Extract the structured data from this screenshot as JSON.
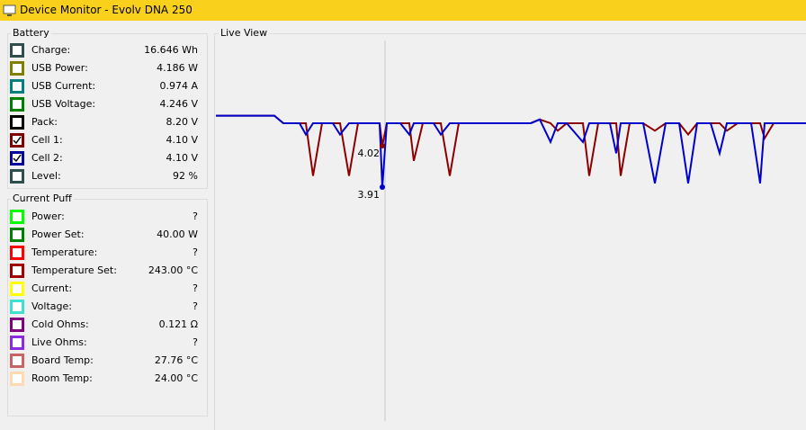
{
  "window": {
    "title": "Device Monitor - Evolv DNA 250"
  },
  "battery": {
    "title": "Battery",
    "rows": [
      {
        "label": "Charge:",
        "value": "16.646 Wh",
        "color": "#2f4f4f",
        "checked": false
      },
      {
        "label": "USB Power:",
        "value": "4.186 W",
        "color": "#808000",
        "checked": false
      },
      {
        "label": "USB Current:",
        "value": "0.974 A",
        "color": "#008080",
        "checked": false
      },
      {
        "label": "USB Voltage:",
        "value": "4.246 V",
        "color": "#008000",
        "checked": false
      },
      {
        "label": "Pack:",
        "value": "8.20 V",
        "color": "#000000",
        "checked": false
      },
      {
        "label": "Cell 1:",
        "value": "4.10 V",
        "color": "#800000",
        "checked": true
      },
      {
        "label": "Cell 2:",
        "value": "4.10 V",
        "color": "#0000a0",
        "checked": true
      },
      {
        "label": "Level:",
        "value": "92 %",
        "color": "#2f4f4f",
        "checked": false
      }
    ]
  },
  "current_puff": {
    "title": "Current Puff",
    "rows": [
      {
        "label": "Power:",
        "value": "?",
        "color": "#00ff00",
        "checked": false
      },
      {
        "label": "Power Set:",
        "value": "40.00 W",
        "color": "#008000",
        "checked": false
      },
      {
        "label": "Temperature:",
        "value": "?",
        "color": "#ff0000",
        "checked": false
      },
      {
        "label": "Temperature Set:",
        "value": "243.00 °C",
        "color": "#a00000",
        "checked": false
      },
      {
        "label": "Current:",
        "value": "?",
        "color": "#ffff00",
        "checked": false
      },
      {
        "label": "Voltage:",
        "value": "?",
        "color": "#40e0d0",
        "checked": false
      },
      {
        "label": "Cold Ohms:",
        "value": "0.121 Ω",
        "color": "#800080",
        "checked": false
      },
      {
        "label": "Live Ohms:",
        "value": "?",
        "color": "#8a2be2",
        "checked": false
      },
      {
        "label": "Board Temp:",
        "value": "27.76 °C",
        "color": "#c86464",
        "checked": false
      },
      {
        "label": "Room Temp:",
        "value": "24.00 °C",
        "color": "#ffdab0",
        "checked": false
      }
    ]
  },
  "chart_data": {
    "type": "line",
    "title": "Live View",
    "x": [
      0,
      65,
      75,
      93,
      100,
      108,
      118,
      130,
      138,
      148,
      158,
      172,
      178,
      182,
      185,
      190,
      205,
      215,
      220,
      230,
      242,
      250,
      260,
      270,
      350,
      360,
      372,
      380,
      390,
      408,
      415,
      425,
      438,
      445,
      450,
      460,
      475,
      488,
      500,
      515,
      525,
      535,
      550,
      560,
      568,
      580,
      595,
      605,
      610,
      620,
      656
    ],
    "xlim": [
      0,
      656
    ],
    "ylim": [
      3.3,
      4.3
    ],
    "series": [
      {
        "color": "#8b0000",
        "values": [
          4.1,
          4.1,
          4.08,
          4.08,
          4.08,
          3.94,
          4.08,
          4.08,
          4.08,
          3.94,
          4.08,
          4.08,
          4.08,
          4.08,
          4.02,
          4.08,
          4.08,
          4.08,
          3.98,
          4.08,
          4.08,
          4.08,
          3.94,
          4.08,
          4.08,
          4.09,
          4.08,
          4.06,
          4.08,
          4.08,
          3.94,
          4.08,
          4.08,
          4.08,
          3.94,
          4.08,
          4.08,
          4.06,
          4.08,
          4.08,
          4.05,
          4.08,
          4.08,
          4.08,
          4.06,
          4.08,
          4.08,
          4.08,
          4.04,
          4.08,
          4.08
        ]
      },
      {
        "color": "#0000cd",
        "values": [
          4.1,
          4.1,
          4.08,
          4.08,
          4.05,
          4.08,
          4.08,
          4.08,
          4.05,
          4.08,
          4.08,
          4.08,
          4.08,
          4.08,
          3.91,
          4.08,
          4.08,
          4.05,
          4.08,
          4.08,
          4.08,
          4.05,
          4.08,
          4.08,
          4.08,
          4.09,
          4.03,
          4.08,
          4.08,
          4.03,
          4.08,
          4.08,
          4.08,
          4.0,
          4.08,
          4.08,
          4.08,
          3.92,
          4.08,
          4.08,
          3.92,
          4.08,
          4.08,
          4.0,
          4.08,
          4.08,
          4.08,
          3.92,
          4.08,
          4.08,
          4.08
        ]
      }
    ],
    "cursor": {
      "x": 185,
      "values": [
        4.02,
        3.91
      ]
    }
  }
}
